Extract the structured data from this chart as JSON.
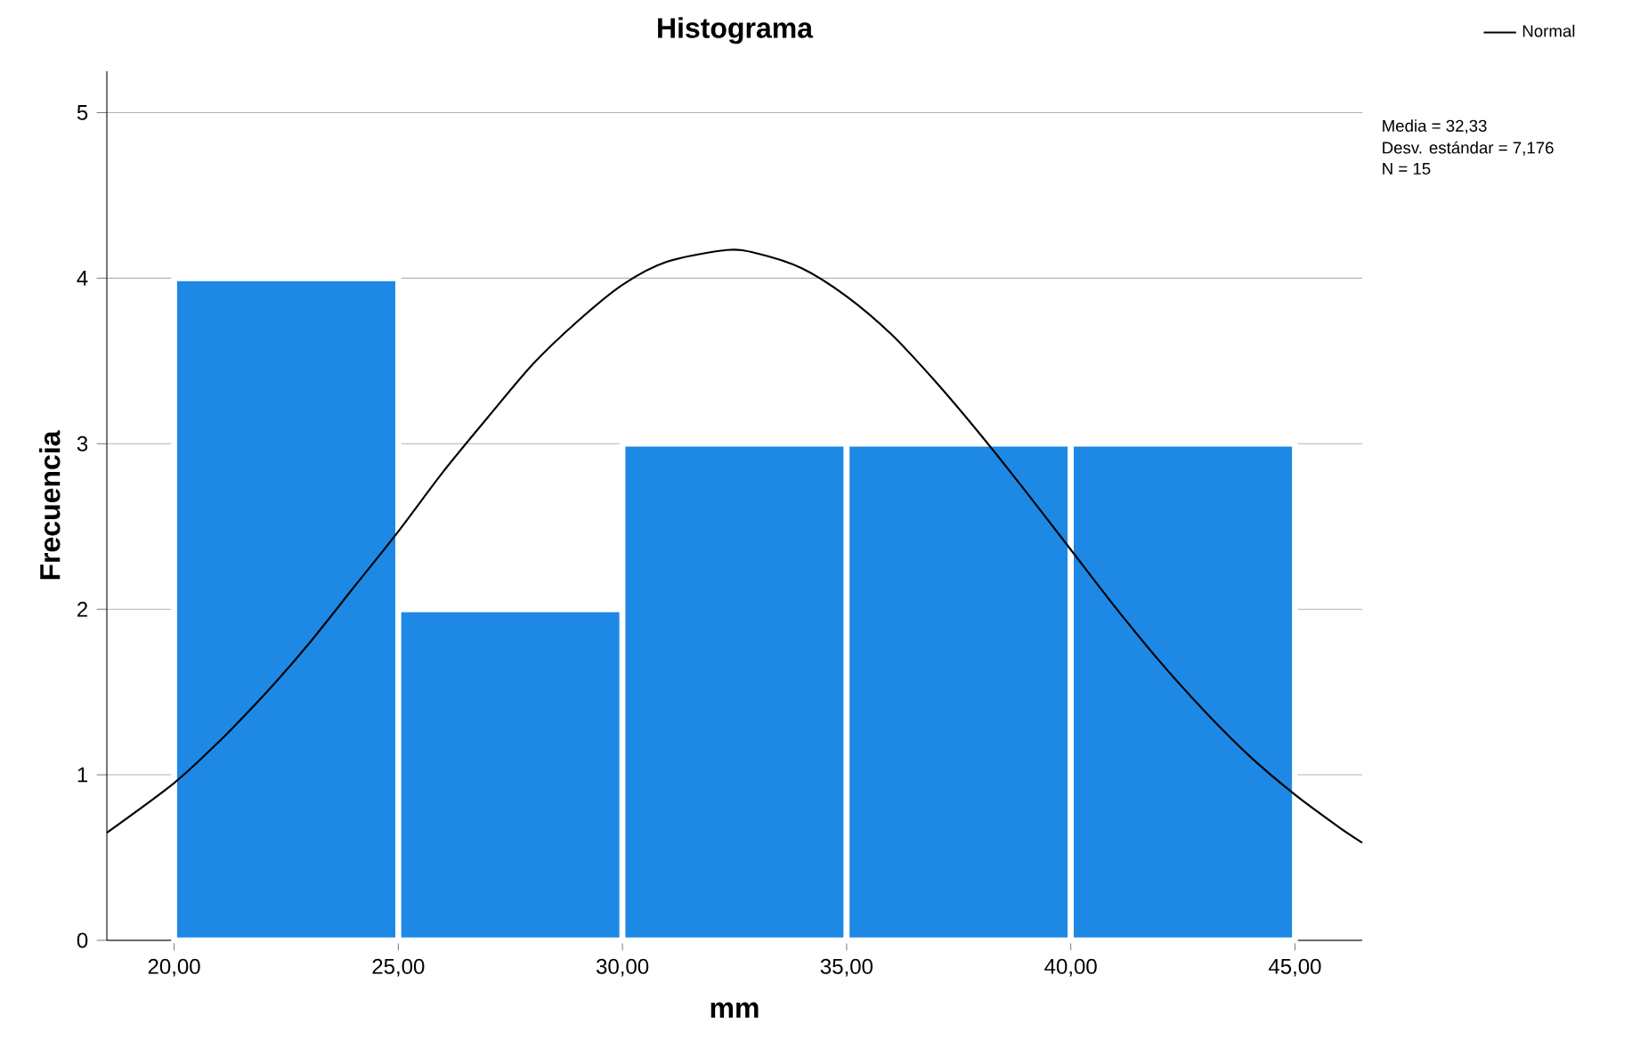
{
  "chart_data": {
    "type": "histogram",
    "title": "Histograma",
    "xlabel": "mm",
    "ylabel": "Frecuencia",
    "series": [
      {
        "type": "histogram",
        "bins": [
          20,
          25,
          30,
          35,
          40,
          45
        ],
        "values": [
          4,
          2,
          3,
          3,
          3
        ],
        "color": "#1e88e5"
      },
      {
        "type": "line",
        "name": "Normal",
        "color": "#000000",
        "x": [
          18.5,
          20,
          21,
          22,
          23,
          24,
          25,
          26,
          27,
          28,
          29,
          30,
          31,
          32.33,
          33,
          34,
          35,
          36,
          37,
          38,
          39,
          40,
          41,
          42,
          43,
          44,
          45,
          46,
          46.5
        ],
        "values": [
          0.65,
          0.95,
          1.2,
          1.48,
          1.79,
          2.13,
          2.47,
          2.83,
          3.16,
          3.48,
          3.74,
          3.96,
          4.1,
          4.17,
          4.15,
          4.06,
          3.89,
          3.66,
          3.37,
          3.05,
          2.71,
          2.36,
          2.01,
          1.68,
          1.38,
          1.11,
          0.88,
          0.68,
          0.59
        ]
      }
    ],
    "xlim": [
      18.5,
      46.5
    ],
    "ylim": [
      0,
      5.25
    ],
    "xticks": [
      {
        "value": 20,
        "label": "20,00"
      },
      {
        "value": 25,
        "label": "25,00"
      },
      {
        "value": 30,
        "label": "30,00"
      },
      {
        "value": 35,
        "label": "35,00"
      },
      {
        "value": 40,
        "label": "40,00"
      },
      {
        "value": 45,
        "label": "45,00"
      }
    ],
    "yticks": [
      0,
      1,
      2,
      3,
      4,
      5
    ],
    "grid": "y",
    "legend": "top right",
    "annotations": [
      "Media = 32,33",
      "Desv. estándar = 7,176",
      "N = 15"
    ]
  }
}
